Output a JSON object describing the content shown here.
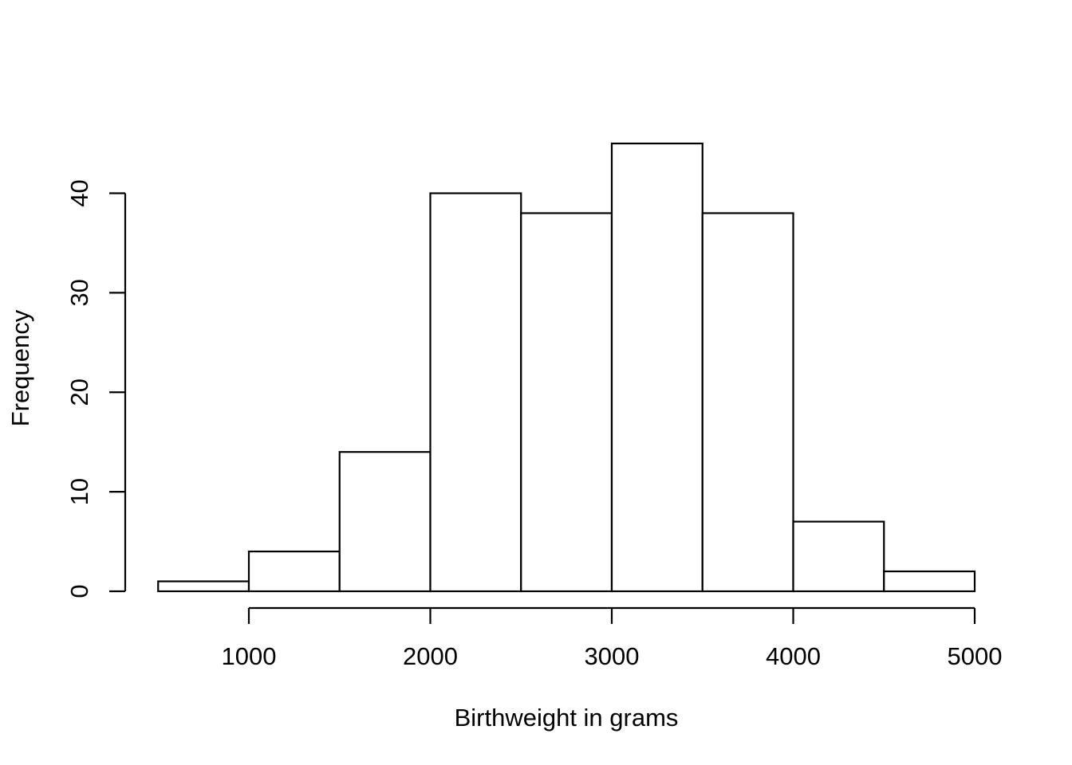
{
  "chart_data": {
    "type": "bar",
    "title": "",
    "xlabel": "Birthweight in grams",
    "ylabel": "Frequency",
    "bin_edges": [
      500,
      1000,
      1500,
      2000,
      2500,
      3000,
      3500,
      4000,
      4500,
      5000
    ],
    "values": [
      1,
      4,
      14,
      40,
      38,
      45,
      38,
      7,
      2
    ],
    "xlim": [
      1000,
      5000
    ],
    "ylim": [
      0,
      40
    ],
    "x_ticks": [
      1000,
      2000,
      3000,
      4000,
      5000
    ],
    "y_ticks": [
      0,
      10,
      20,
      30,
      40
    ],
    "x_tick_labels": [
      "1000",
      "2000",
      "3000",
      "4000",
      "5000"
    ],
    "y_tick_labels": [
      "0",
      "10",
      "20",
      "30",
      "40"
    ],
    "grid": false,
    "legend": "none",
    "colors": {
      "bar_fill": "#ffffff",
      "bar_stroke": "#000000"
    }
  }
}
